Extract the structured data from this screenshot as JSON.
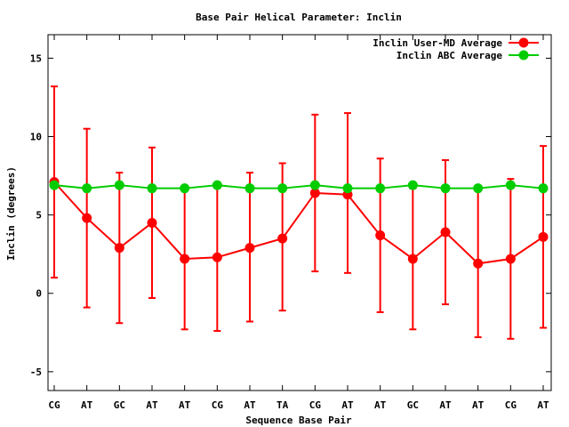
{
  "chart_data": {
    "type": "line",
    "title": "Base Pair Helical Parameter: Inclin",
    "xlabel": "Sequence Base Pair",
    "ylabel": "Inclin (degrees)",
    "categories": [
      "CG",
      "AT",
      "GC",
      "AT",
      "AT",
      "CG",
      "AT",
      "TA",
      "CG",
      "AT",
      "AT",
      "GC",
      "AT",
      "AT",
      "CG",
      "AT"
    ],
    "ylim": [
      -6.2,
      16.5
    ],
    "yticks": [
      -5,
      0,
      5,
      10,
      15
    ],
    "ytick_labels": [
      "-5",
      "0",
      "5",
      "10",
      "15"
    ],
    "grid": false,
    "legend_position": "top-right",
    "series": [
      {
        "name": "Inclin User-MD Average",
        "color": "#ff0000",
        "values": [
          7.1,
          4.8,
          2.9,
          4.5,
          2.2,
          2.3,
          2.9,
          3.5,
          6.4,
          6.3,
          3.7,
          2.2,
          3.9,
          1.9,
          2.2,
          3.6
        ],
        "error_low": [
          1.0,
          -0.9,
          -1.9,
          -0.3,
          -2.3,
          -2.4,
          -1.8,
          -1.1,
          1.4,
          1.3,
          -1.2,
          -2.3,
          -0.7,
          -2.8,
          -2.9,
          -2.2
        ],
        "error_high": [
          13.2,
          10.5,
          7.7,
          9.3,
          6.7,
          6.9,
          7.7,
          8.3,
          11.4,
          11.5,
          8.6,
          6.7,
          8.5,
          6.7,
          7.3,
          9.4
        ]
      },
      {
        "name": "Inclin ABC Average",
        "color": "#00cc00",
        "values": [
          6.9,
          6.7,
          6.9,
          6.7,
          6.7,
          6.9,
          6.7,
          6.7,
          6.9,
          6.7,
          6.7,
          6.9,
          6.7,
          6.7,
          6.9,
          6.7
        ]
      }
    ]
  }
}
